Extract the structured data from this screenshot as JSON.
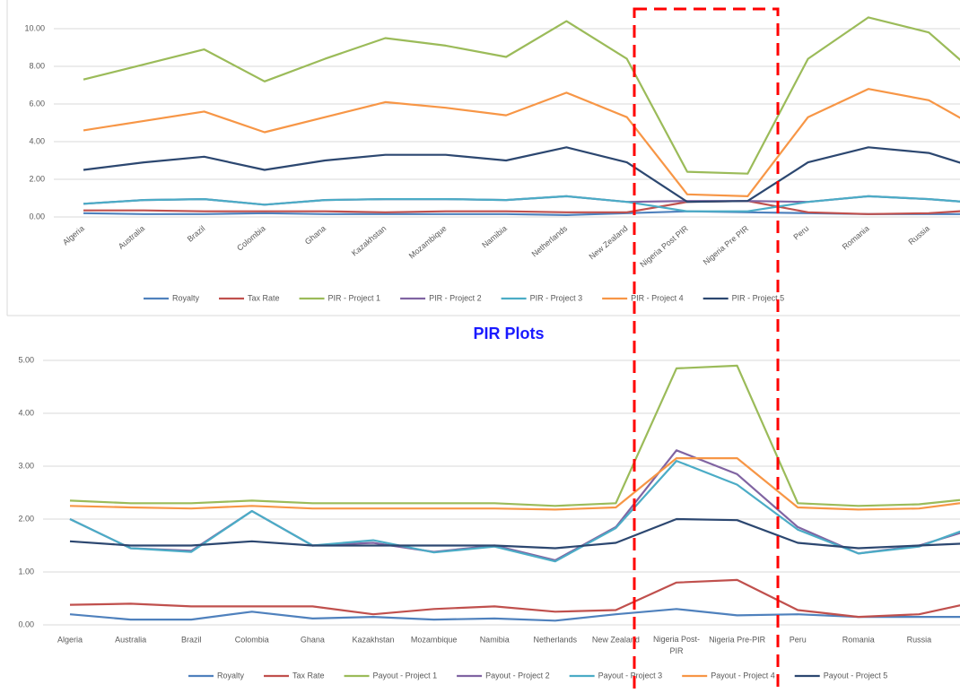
{
  "chart_data": [
    {
      "type": "line",
      "categories": [
        "Algeria",
        "Australia",
        "Brazil",
        "Colombia",
        "Ghana",
        "Kazakhstan",
        "Mozambique",
        "Namibia",
        "Netherlands",
        "New Zealand",
        "Nigeria Post PIR",
        "Nigeria Pre PIR",
        "Peru",
        "Romania",
        "Russia",
        null
      ],
      "ylim": [
        0,
        10.5
      ],
      "yticks": [
        {
          "value": 0,
          "label": "0.00"
        },
        {
          "value": 2,
          "label": "2.00"
        },
        {
          "value": 4,
          "label": "4.00"
        },
        {
          "value": 6,
          "label": "6.00"
        },
        {
          "value": 8,
          "label": "8.00"
        },
        {
          "value": 10,
          "label": "10.00"
        }
      ],
      "grid": true,
      "legend": "bottom",
      "series": [
        {
          "name": "Royalty",
          "color": "#4f81bd",
          "values": [
            0.2,
            0.15,
            0.15,
            0.2,
            0.15,
            0.15,
            0.15,
            0.15,
            0.1,
            0.2,
            0.3,
            0.25,
            0.2,
            0.15,
            0.15,
            0.15
          ]
        },
        {
          "name": "Tax Rate",
          "color": "#c0504d",
          "values": [
            0.35,
            0.35,
            0.3,
            0.3,
            0.3,
            0.25,
            0.3,
            0.3,
            0.25,
            0.25,
            0.8,
            0.85,
            0.25,
            0.15,
            0.2,
            0.4
          ]
        },
        {
          "name": "PIR - Project 1",
          "color": "#9bbb59",
          "values": [
            7.3,
            8.1,
            8.9,
            7.2,
            8.4,
            9.5,
            9.1,
            8.5,
            10.4,
            8.4,
            2.4,
            2.3,
            8.4,
            10.6,
            9.8,
            7.0
          ]
        },
        {
          "name": "PIR - Project 2",
          "color": "#8064a2",
          "values": [
            0.7,
            0.9,
            0.95,
            0.65,
            0.9,
            0.95,
            0.95,
            0.9,
            1.1,
            0.8,
            0.85,
            0.85,
            0.8,
            1.1,
            0.95,
            0.7
          ]
        },
        {
          "name": "PIR - Project 3",
          "color": "#4bacc6",
          "values": [
            0.7,
            0.9,
            0.95,
            0.65,
            0.9,
            0.95,
            0.95,
            0.9,
            1.1,
            0.8,
            0.3,
            0.3,
            0.8,
            1.1,
            0.95,
            0.7
          ]
        },
        {
          "name": "PIR - Project 4",
          "color": "#f79646",
          "values": [
            4.6,
            5.1,
            5.6,
            4.5,
            5.3,
            6.1,
            5.8,
            5.4,
            6.6,
            5.3,
            1.2,
            1.1,
            5.3,
            6.8,
            6.2,
            4.4
          ]
        },
        {
          "name": "PIR - Project 5",
          "color": "#2c4770",
          "values": [
            2.5,
            2.9,
            3.2,
            2.5,
            3.0,
            3.3,
            3.3,
            3.0,
            3.7,
            2.9,
            0.8,
            0.85,
            2.9,
            3.7,
            3.4,
            2.4
          ]
        }
      ]
    },
    {
      "type": "line",
      "title": "PIR Plots",
      "categories": [
        "Algeria",
        "Australia",
        "Brazil",
        "Colombia",
        "Ghana",
        "Kazakhstan",
        "Mozambique",
        "Namibia",
        "Netherlands",
        "New Zealand",
        "Nigeria Post-PIR",
        "Nigeria Pre-PIR",
        "Peru",
        "Romania",
        "Russia",
        null
      ],
      "ylim": [
        0,
        5
      ],
      "yticks": [
        {
          "value": 0,
          "label": "0.00"
        },
        {
          "value": 1,
          "label": "1.00"
        },
        {
          "value": 2,
          "label": "2.00"
        },
        {
          "value": 3,
          "label": "3.00"
        },
        {
          "value": 4,
          "label": "4.00"
        },
        {
          "value": 5,
          "label": "5.00"
        }
      ],
      "grid": true,
      "legend": "bottom",
      "series": [
        {
          "name": "Royalty",
          "color": "#4f81bd",
          "values": [
            0.2,
            0.1,
            0.1,
            0.25,
            0.12,
            0.15,
            0.1,
            0.12,
            0.08,
            0.2,
            0.3,
            0.18,
            0.2,
            0.15,
            0.15,
            0.15
          ]
        },
        {
          "name": "Tax Rate",
          "color": "#c0504d",
          "values": [
            0.38,
            0.4,
            0.35,
            0.35,
            0.35,
            0.2,
            0.3,
            0.35,
            0.25,
            0.28,
            0.8,
            0.85,
            0.28,
            0.15,
            0.2,
            0.45
          ]
        },
        {
          "name": "Payout - Project 1",
          "color": "#9bbb59",
          "values": [
            2.35,
            2.3,
            2.3,
            2.35,
            2.3,
            2.3,
            2.3,
            2.3,
            2.25,
            2.3,
            4.85,
            4.9,
            2.3,
            2.25,
            2.28,
            2.4
          ]
        },
        {
          "name": "Payout - Project 2",
          "color": "#8064a2",
          "values": [
            2.0,
            1.45,
            1.4,
            2.15,
            1.5,
            1.55,
            1.38,
            1.5,
            1.22,
            1.85,
            3.3,
            2.85,
            1.85,
            1.35,
            1.5,
            1.85
          ]
        },
        {
          "name": "Payout - Project 3",
          "color": "#4bacc6",
          "values": [
            2.0,
            1.45,
            1.38,
            2.15,
            1.5,
            1.6,
            1.37,
            1.48,
            1.2,
            1.83,
            3.1,
            2.65,
            1.8,
            1.35,
            1.48,
            1.9
          ]
        },
        {
          "name": "Payout - Project 4",
          "color": "#f79646",
          "values": [
            2.25,
            2.22,
            2.2,
            2.25,
            2.2,
            2.2,
            2.2,
            2.2,
            2.18,
            2.22,
            3.15,
            3.15,
            2.22,
            2.18,
            2.2,
            2.35
          ]
        },
        {
          "name": "Payout - Project 5",
          "color": "#2c4770",
          "values": [
            1.58,
            1.5,
            1.5,
            1.58,
            1.5,
            1.5,
            1.5,
            1.5,
            1.45,
            1.55,
            2.0,
            1.98,
            1.55,
            1.45,
            1.5,
            1.55
          ]
        }
      ]
    }
  ]
}
